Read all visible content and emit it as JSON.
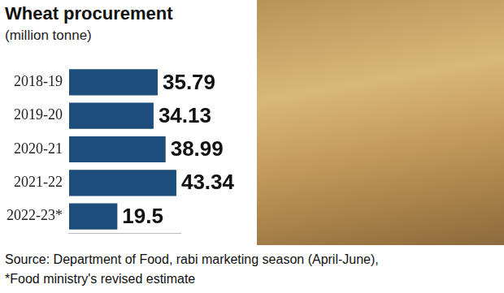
{
  "chart_data": {
    "type": "bar",
    "orientation": "horizontal",
    "title": "Wheat procurement",
    "subtitle": "(million tonne)",
    "categories": [
      "2018-19",
      "2019-20",
      "2020-21",
      "2021-22",
      "2022-23*"
    ],
    "values": [
      35.79,
      34.13,
      38.99,
      43.34,
      19.5
    ],
    "color": "#1d4e7b",
    "xlim": [
      0,
      45
    ],
    "xticks": [],
    "grid": false,
    "data_labels": true,
    "tick_labels": "y",
    "annotations": [
      "Source: Department of Food, rabi marketing season (April-June),",
      "*Food ministry's revised estimate"
    ]
  }
}
